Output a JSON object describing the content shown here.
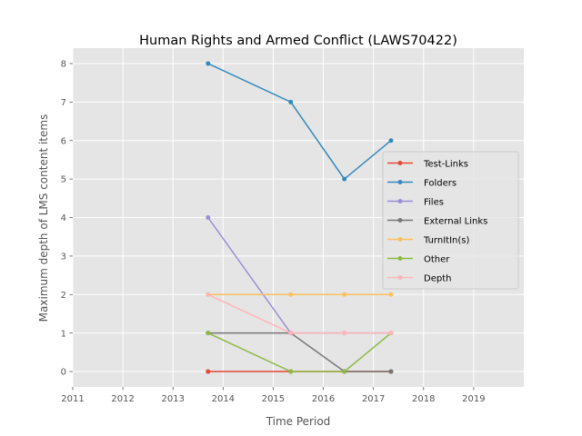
{
  "chart_data": {
    "type": "line",
    "title": "Human Rights and Armed Conflict (LAWS70422)",
    "xlabel": "Time Period",
    "ylabel": "Maximum depth of LMS content items",
    "xlim": [
      2011,
      2020
    ],
    "ylim": [
      -0.4,
      8.4
    ],
    "xticks": [
      2011,
      2012,
      2013,
      2014,
      2015,
      2016,
      2017,
      2018,
      2019
    ],
    "yticks": [
      0,
      1,
      2,
      3,
      4,
      5,
      6,
      7,
      8
    ],
    "x": [
      2013.7,
      2015.35,
      2016.42,
      2017.35
    ],
    "grid": true,
    "legend_position": "center-right",
    "series": [
      {
        "name": "Test-Links",
        "color": "#e24a33",
        "values": [
          0,
          0,
          0,
          0
        ]
      },
      {
        "name": "Folders",
        "color": "#348abd",
        "values": [
          8,
          7,
          5,
          6
        ]
      },
      {
        "name": "Files",
        "color": "#988ed5",
        "values": [
          4,
          1,
          1,
          1
        ]
      },
      {
        "name": "External Links",
        "color": "#777777",
        "values": [
          1,
          1,
          0,
          0
        ]
      },
      {
        "name": "TurnItIn(s)",
        "color": "#fbc15e",
        "values": [
          2,
          2,
          2,
          2
        ]
      },
      {
        "name": "Other",
        "color": "#8eba42",
        "values": [
          1,
          0,
          0,
          1
        ]
      },
      {
        "name": "Depth",
        "color": "#ffb5b8",
        "values": [
          2,
          1,
          1,
          1
        ]
      }
    ]
  }
}
